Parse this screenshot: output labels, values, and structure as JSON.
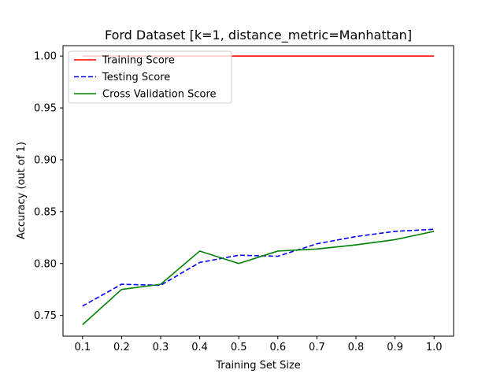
{
  "chart_data": {
    "type": "line",
    "title": "Ford Dataset [k=1, distance_metric=Manhattan]",
    "xlabel": "Training Set Size",
    "ylabel": "Accuracy (out of 1)",
    "xlim": [
      0.05,
      1.05
    ],
    "ylim": [
      0.73,
      1.01
    ],
    "x": [
      0.1,
      0.2,
      0.3,
      0.4,
      0.5,
      0.6,
      0.7,
      0.8,
      0.9,
      1.0
    ],
    "xticks": [
      "0.1",
      "0.2",
      "0.3",
      "0.4",
      "0.5",
      "0.6",
      "0.7",
      "0.8",
      "0.9",
      "1.0"
    ],
    "yticks": [
      "0.75",
      "0.80",
      "0.85",
      "0.90",
      "0.95",
      "1.00"
    ],
    "legend_position": "top-left",
    "grid": false,
    "series": [
      {
        "name": "Training Score",
        "color": "#ff0000",
        "style": "solid",
        "values": [
          1.0,
          1.0,
          1.0,
          1.0,
          1.0,
          1.0,
          1.0,
          1.0,
          1.0,
          1.0
        ]
      },
      {
        "name": "Testing Score",
        "color": "#0000ff",
        "style": "dashed",
        "values": [
          0.759,
          0.78,
          0.779,
          0.801,
          0.808,
          0.807,
          0.819,
          0.826,
          0.831,
          0.833
        ]
      },
      {
        "name": "Cross Validation Score",
        "color": "#008000",
        "style": "solid",
        "values": [
          0.741,
          0.775,
          0.78,
          0.812,
          0.8,
          0.812,
          0.814,
          0.818,
          0.823,
          0.831
        ]
      }
    ]
  }
}
